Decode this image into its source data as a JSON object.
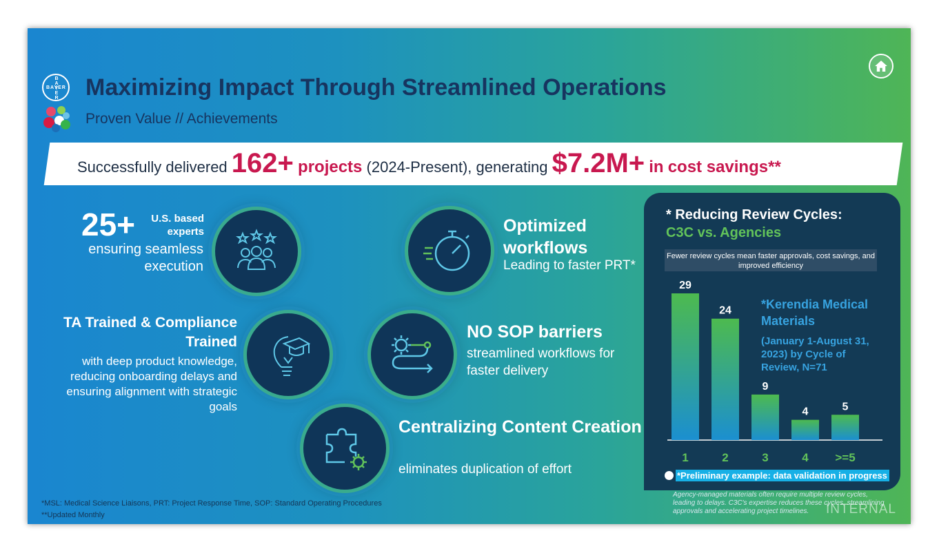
{
  "header": {
    "title": "Maximizing Impact Through Streamlined Operations",
    "subtitle": "Proven Value // Achievements",
    "logo_text": "BAYER"
  },
  "banner": {
    "prefix": "Successfully delivered",
    "projects_count": "162+",
    "projects_label": "projects",
    "period": "(2024-Present), generating",
    "savings_amount": "$7.2M+",
    "savings_in": "in",
    "savings_label": "cost savings**"
  },
  "features": {
    "experts": {
      "count": "25+",
      "label": "U.S. based experts",
      "description": "ensuring seamless execution"
    },
    "trained": {
      "title": "TA Trained & Compliance Trained",
      "description": "with deep product knowledge, reducing onboarding delays and ensuring alignment with strategic goals"
    },
    "workflows": {
      "title": "Optimized workflows",
      "description": "Leading to faster PRT*"
    },
    "sop": {
      "title": "NO SOP barriers",
      "description": "streamlined workflows for faster delivery"
    },
    "content": {
      "title": "Centralizing Content Creation",
      "description": "eliminates duplication of effort"
    }
  },
  "footnotes": {
    "line1": "*MSL: Medical Science Liaisons, PRT: Project Response Time, SOP: Standard Operating Procedures",
    "line2": "**Updated Monthly"
  },
  "panel": {
    "title": "* Reducing Review Cycles:",
    "subtitle": "C3C vs. Agencies",
    "note": "Fewer review cycles mean faster approvals, cost savings, and improved efficiency",
    "legend_title": "*Kerendia Medical Materials",
    "legend_sub": "(January 1-August 31, 2023) by Cycle of Review, N=71",
    "preliminary": "*Preliminary example: data validation in progress"
  },
  "chart_data": {
    "type": "bar",
    "categories": [
      "1",
      "2",
      "3",
      "4",
      ">=5"
    ],
    "values": [
      29,
      24,
      9,
      4,
      5
    ],
    "title": "* Reducing Review Cycles: C3C vs. Agencies",
    "xlabel": "",
    "ylabel": "",
    "ylim": [
      0,
      29
    ],
    "grid": false
  },
  "agency_note": "Agency-managed materials often require multiple review cycles, leading to delays. C3C's expertise reduces these cycles, streamlining approvals and accelerating project timelines.",
  "watermark": "INTERNAL",
  "colors": {
    "title": "#17345f",
    "accent_red": "#c8184f",
    "panel_bg": "#133a55",
    "green": "#62c35a",
    "blue_label": "#37a3e0"
  }
}
